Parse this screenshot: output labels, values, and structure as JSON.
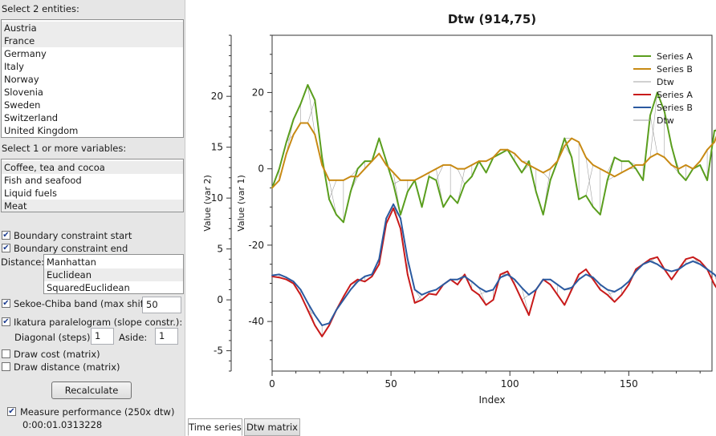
{
  "left_panel": {
    "entities_label": "Select 2 entities:",
    "entities": [
      "Austria",
      "France",
      "Germany",
      "Italy",
      "Norway",
      "Slovenia",
      "Sweden",
      "Switzerland",
      "United Kingdom"
    ],
    "entities_selected": [
      0,
      1
    ],
    "variables_label": "Select 1 or more variables:",
    "variables": [
      "Coffee, tea and cocoa",
      "Fish and seafood",
      "Liquid fuels",
      "Meat"
    ],
    "variables_selected": [
      0,
      3
    ],
    "boundary_start": {
      "label": "Boundary constraint start",
      "checked": true
    },
    "boundary_end": {
      "label": "Boundary constraint end",
      "checked": true
    },
    "distance_label": "Distance:",
    "distances": [
      "Manhattan",
      "Euclidean",
      "SquaredEuclidean"
    ],
    "distance_selected": 1,
    "sakoe": {
      "label": "Sekoe-Chiba band (max shift):",
      "checked": true,
      "value": "50"
    },
    "itakura": {
      "label": "Ikatura paralelogram (slope constr.):",
      "checked": true
    },
    "diagonal": {
      "label": "Diagonal (steps):",
      "value": "1"
    },
    "aside": {
      "label": "Aside:",
      "value": "1"
    },
    "draw_cost": {
      "label": "Draw cost (matrix)",
      "checked": false
    },
    "draw_distance": {
      "label": "Draw distance (matrix)",
      "checked": false
    },
    "recalculate_label": "Recalculate",
    "measure": {
      "label": "Measure performance (250x dtw)",
      "checked": true
    },
    "elapsed": "0:00:01.0313228"
  },
  "tabs": [
    {
      "label": "Time series",
      "active": true
    },
    {
      "label": "Dtw matrix",
      "active": false
    }
  ],
  "colors": {
    "series_a_top": "#5a9e1e",
    "series_b_top": "#c88a14",
    "series_a_bottom": "#c81a1a",
    "series_b_bottom": "#2b5aa0",
    "dtw": "#a0a0a0"
  },
  "chart_data": {
    "type": "line",
    "title": "Dtw (914,75)",
    "xlabel": "Index",
    "xlim": [
      0,
      185
    ],
    "x_ticks": [
      0,
      50,
      100,
      150
    ],
    "left_axis": {
      "label": "Value (var 2)",
      "ticks": [
        -5,
        0,
        5,
        10,
        15,
        20
      ],
      "range": [
        -7,
        26
      ]
    },
    "right_axis": {
      "label": "Value (var 1)",
      "ticks": [
        -40,
        -20,
        0,
        20
      ],
      "range": [
        -53,
        35
      ]
    },
    "legend_position": "top-right",
    "legend": [
      "Series A",
      "Series B",
      "Dtw",
      "Series A",
      "Series B",
      "Dtw"
    ],
    "series_x_step": 3,
    "series": [
      {
        "name": "Series A",
        "axis": "right",
        "group": "top",
        "role": "A",
        "values": [
          -5,
          0,
          7,
          13,
          17,
          22,
          18,
          3,
          -8,
          -12,
          -14,
          -6,
          0,
          2,
          2,
          8,
          2,
          -4,
          -12,
          -6,
          -3,
          -10,
          -2,
          -3,
          -10,
          -7,
          -9,
          -4,
          -2,
          2,
          -1,
          3,
          4,
          5,
          2,
          -1,
          2,
          -6,
          -12,
          -3,
          2,
          8,
          3,
          -8,
          -7,
          -10,
          -12,
          -3,
          3,
          2,
          2,
          0,
          -3,
          14,
          20,
          15,
          6,
          -1,
          -3,
          0,
          1,
          -3,
          10,
          10,
          12,
          2
        ]
      },
      {
        "name": "Series B",
        "axis": "right",
        "group": "top",
        "role": "B",
        "values": [
          -5,
          -3,
          4,
          9,
          12,
          12,
          9,
          1,
          -3,
          -3,
          -3,
          -2,
          -2,
          0,
          2,
          4,
          1,
          -1,
          -3,
          -3,
          -3,
          -2,
          -1,
          0,
          1,
          1,
          0,
          0,
          1,
          2,
          2,
          3,
          5,
          5,
          4,
          2,
          1,
          0,
          -1,
          0,
          2,
          6,
          8,
          7,
          3,
          1,
          0,
          -1,
          -2,
          -1,
          0,
          1,
          1,
          3,
          4,
          3,
          1,
          0,
          1,
          0,
          2,
          5,
          7,
          12,
          14,
          10
        ]
      },
      {
        "name": "Series A",
        "axis": "left",
        "group": "bottom",
        "role": "A",
        "values": [
          2.3,
          2.2,
          2.0,
          1.6,
          0.5,
          -1.0,
          -2.5,
          -3.6,
          -2.5,
          -1.0,
          0.3,
          1.5,
          2.0,
          1.8,
          2.3,
          3.5,
          7.5,
          9.0,
          7.0,
          2.5,
          -0.3,
          0.0,
          0.6,
          0.5,
          1.5,
          2.0,
          1.5,
          2.5,
          1.0,
          0.5,
          -0.5,
          0.0,
          2.5,
          2.8,
          1.5,
          0.0,
          -1.5,
          1.0,
          2.0,
          1.5,
          0.5,
          -0.5,
          1.0,
          2.5,
          3.0,
          2.0,
          1.0,
          0.5,
          -0.2,
          0.5,
          1.5,
          3.0,
          3.5,
          4.0,
          4.2,
          3.0,
          2.0,
          3.0,
          4.0,
          4.2,
          3.8,
          3.0,
          1.5,
          0.5,
          1.5,
          2.5,
          3.5,
          4.0,
          5.0,
          6.0,
          6.5,
          7.0
        ]
      },
      {
        "name": "Series B",
        "axis": "left",
        "group": "bottom",
        "role": "B",
        "values": [
          2.4,
          2.5,
          2.2,
          1.8,
          1.0,
          -0.3,
          -1.5,
          -2.5,
          -2.3,
          -1.0,
          0.0,
          1.0,
          1.8,
          2.3,
          2.5,
          4.0,
          8.0,
          9.4,
          8.0,
          4.0,
          1.0,
          0.5,
          0.8,
          1.0,
          1.5,
          2.0,
          2.0,
          2.3,
          1.8,
          1.2,
          0.8,
          1.0,
          2.2,
          2.5,
          2.0,
          1.2,
          0.5,
          1.0,
          2.0,
          2.0,
          1.5,
          1.0,
          1.2,
          2.0,
          2.5,
          2.2,
          1.5,
          1.0,
          0.8,
          1.2,
          1.8,
          2.8,
          3.5,
          3.8,
          3.5,
          3.0,
          2.8,
          3.0,
          3.5,
          3.8,
          3.5,
          3.0,
          2.5,
          1.8,
          2.0,
          2.5,
          3.0,
          3.5,
          4.0,
          4.2,
          4.5,
          5.0
        ]
      }
    ]
  }
}
